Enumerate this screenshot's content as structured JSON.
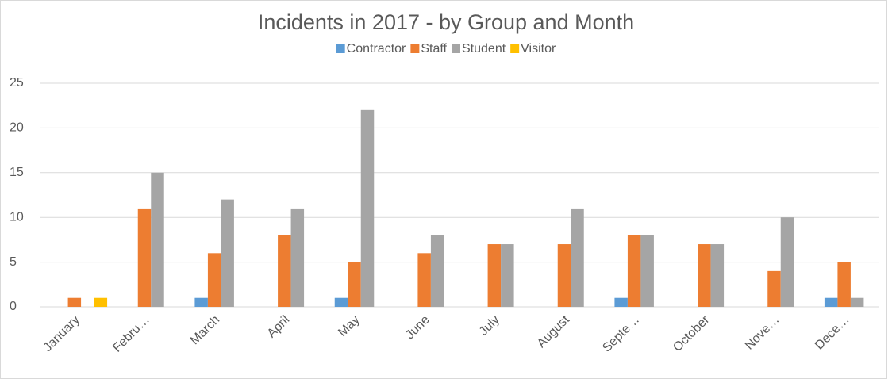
{
  "chart_data": {
    "type": "bar",
    "title": "Incidents in 2017 - by Group and Month",
    "categories": [
      "January",
      "Febru…",
      "March",
      "April",
      "May",
      "June",
      "July",
      "August",
      "Septe…",
      "October",
      "Nove…",
      "Dece…"
    ],
    "series": [
      {
        "name": "Contractor",
        "color": "#5b9bd5",
        "values": [
          0,
          0,
          1,
          0,
          1,
          0,
          0,
          0,
          1,
          0,
          0,
          1
        ]
      },
      {
        "name": "Staff",
        "color": "#ed7d31",
        "values": [
          1,
          11,
          6,
          8,
          5,
          6,
          7,
          7,
          8,
          7,
          4,
          5
        ]
      },
      {
        "name": "Student",
        "color": "#a5a5a5",
        "values": [
          0,
          15,
          12,
          11,
          22,
          8,
          7,
          11,
          8,
          7,
          10,
          1
        ]
      },
      {
        "name": "Visitor",
        "color": "#ffc000",
        "values": [
          1,
          0,
          0,
          0,
          0,
          0,
          0,
          0,
          0,
          0,
          0,
          0
        ]
      }
    ],
    "ylim": [
      0,
      25
    ],
    "yticks": [
      0,
      5,
      10,
      15,
      20,
      25
    ],
    "grid": true,
    "legend": "top"
  }
}
